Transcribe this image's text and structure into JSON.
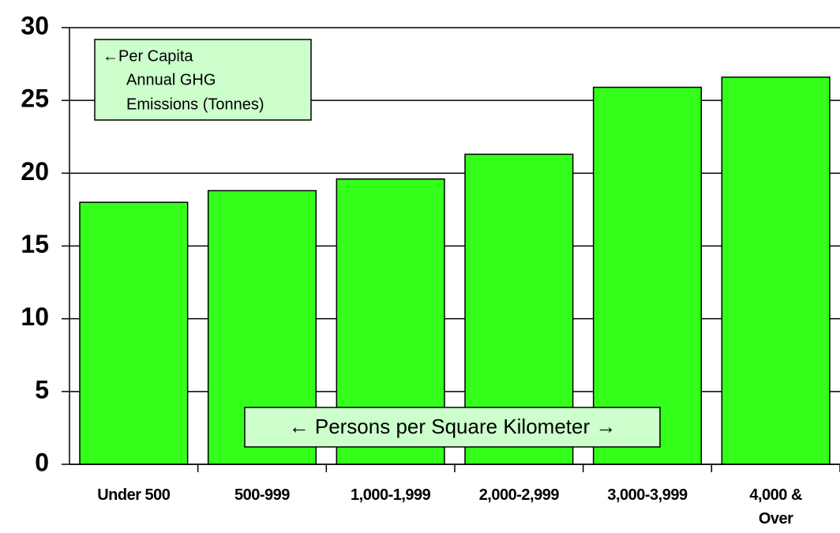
{
  "chart_data": {
    "type": "bar",
    "categories": [
      "Under 500",
      "500-999",
      "1,000-1,999",
      "2,000-2,999",
      "3,000-3,999",
      "4,000 &\nOver"
    ],
    "values": [
      18,
      18.8,
      19.6,
      21.3,
      25.9,
      26.6
    ],
    "color": "#33ff1a",
    "ylim": [
      0,
      30
    ],
    "yticks": [
      0,
      5,
      10,
      15,
      20,
      25,
      30
    ],
    "grid": true,
    "annotations": [
      "←Per Capita",
      "Annual GHG",
      "Emissions (Tonnes)",
      "← Persons per Square Kilometer →"
    ]
  }
}
